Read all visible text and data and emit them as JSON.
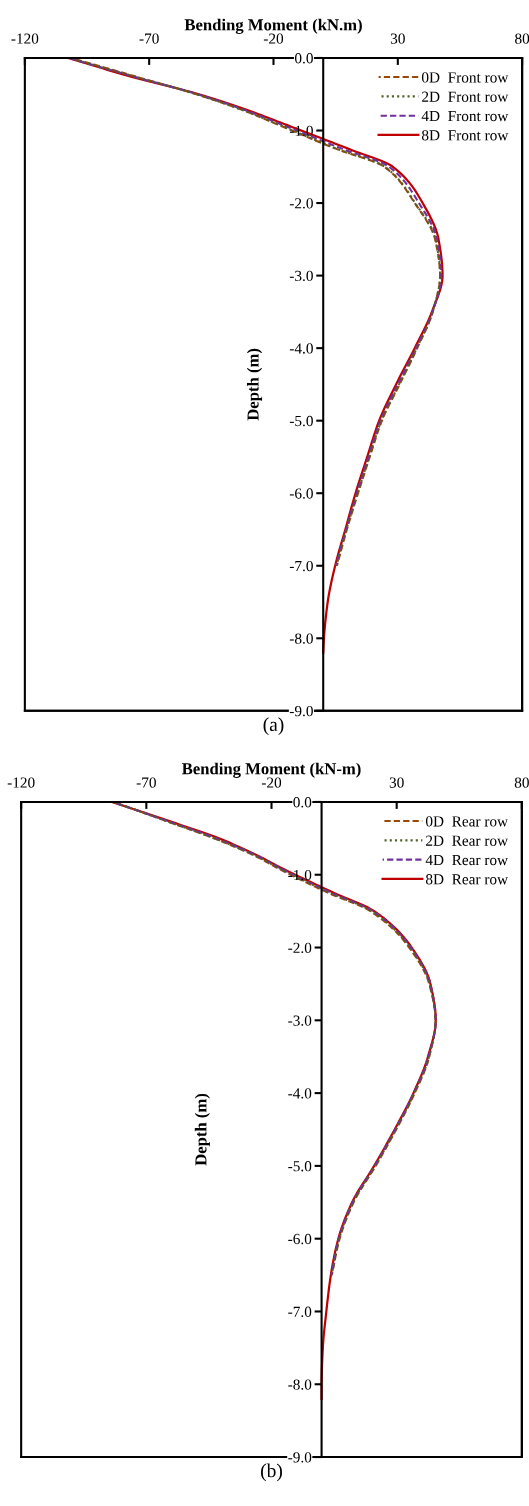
{
  "chart_data": [
    {
      "type": "line",
      "xlabel": "Bending Moment (kN.m)",
      "ylabel": "Depth (m)",
      "annotations": [
        "(a)"
      ],
      "xlim": [
        -120,
        80
      ],
      "xticks": [
        -120,
        -70,
        -20,
        30,
        80
      ],
      "ylim": [
        -9,
        0
      ],
      "yticks": [
        {
          "value": 0,
          "label": "0.0"
        },
        {
          "value": -1,
          "label": "-1.0"
        },
        {
          "value": -2,
          "label": "-2.0"
        },
        {
          "value": -3,
          "label": "-3.0"
        },
        {
          "value": -4,
          "label": "-4.0"
        },
        {
          "value": -5,
          "label": "-5.0"
        },
        {
          "value": -6,
          "label": "-6.0"
        },
        {
          "value": -7,
          "label": "-7.0"
        },
        {
          "value": -8,
          "label": "-8.0"
        },
        {
          "value": -9,
          "label": "-9.0"
        }
      ],
      "grid": false,
      "legend": "top right",
      "marker": "none",
      "series": [
        {
          "name": "0D  Front row",
          "color": "#984807",
          "line_style": "dashed",
          "x": [
            -101.5,
            -76,
            -51,
            -30,
            -19.5,
            5,
            24.6,
            36.8,
            45,
            47,
            44,
            37.8,
            30.7,
            23.6,
            18.7,
            14,
            9.5,
            5.5
          ],
          "values": [
            0,
            -0.25,
            -0.5,
            -0.75,
            -0.9,
            -1.25,
            -1.5,
            -2.0,
            -2.5,
            -3.0,
            -3.5,
            -4.0,
            -4.5,
            -5.0,
            -5.5,
            -6.0,
            -6.5,
            -7.0
          ]
        },
        {
          "name": "2D  Front row",
          "color": "#4f6228",
          "line_style": "dotted",
          "x": [
            -102,
            -76.5,
            -51,
            -30,
            -19.2,
            5.3,
            24.8,
            37,
            45.2,
            47,
            44,
            37.6,
            30.5,
            23.4,
            18.5,
            13.8,
            9.3,
            5.3
          ],
          "values": [
            0,
            -0.25,
            -0.5,
            -0.75,
            -0.9,
            -1.25,
            -1.5,
            -2.0,
            -2.5,
            -3.0,
            -3.5,
            -4.0,
            -4.5,
            -5.0,
            -5.5,
            -6.0,
            -6.5,
            -7.0
          ]
        },
        {
          "name": "4D  Front row",
          "color": "#7030a0",
          "line_style": "dashed",
          "x": [
            -102.5,
            -77,
            -50.5,
            -29,
            -18,
            7.5,
            26.5,
            38.5,
            45.8,
            47.5,
            44,
            37.3,
            30,
            23,
            18.2,
            13.5,
            9.2,
            5
          ],
          "values": [
            0,
            -0.25,
            -0.5,
            -0.75,
            -0.9,
            -1.25,
            -1.5,
            -2.0,
            -2.5,
            -3.0,
            -3.5,
            -4.0,
            -4.5,
            -5.0,
            -5.5,
            -6.0,
            -6.5,
            -7.0
          ]
        },
        {
          "name": "8D  Front row",
          "color": "#c00000",
          "line_style": "solid",
          "x": [
            -102.6,
            -78,
            -50,
            -28,
            -16.5,
            10,
            28,
            40,
            46.4,
            48,
            43.7,
            36.8,
            29.3,
            22.5,
            17.7,
            13,
            8.9,
            4.8,
            1.8,
            0.3,
            0
          ],
          "values": [
            0,
            -0.25,
            -0.5,
            -0.75,
            -0.9,
            -1.25,
            -1.5,
            -2.0,
            -2.5,
            -3.0,
            -3.5,
            -4.0,
            -4.5,
            -5.0,
            -5.5,
            -6.0,
            -6.5,
            -7.0,
            -7.5,
            -8.0,
            -8.2
          ]
        }
      ]
    },
    {
      "type": "line",
      "xlabel": "Bending Moment (kN-m)",
      "ylabel": "Depth (m)",
      "annotations": [
        "(b)"
      ],
      "xlim": [
        -120,
        80
      ],
      "xticks": [
        -120,
        -70,
        -20,
        30,
        80
      ],
      "ylim": [
        -9,
        0
      ],
      "yticks": [
        {
          "value": 0,
          "label": "0.0"
        },
        {
          "value": -1,
          "label": "-1.0"
        },
        {
          "value": -2,
          "label": "-2.0"
        },
        {
          "value": -3,
          "label": "-3.0"
        },
        {
          "value": -4,
          "label": "-4.0"
        },
        {
          "value": -5,
          "label": "-5.0"
        },
        {
          "value": -6,
          "label": "-6.0"
        },
        {
          "value": -7,
          "label": "-7.0"
        },
        {
          "value": -8,
          "label": "-8.0"
        },
        {
          "value": -9,
          "label": "-9.0"
        }
      ],
      "grid": false,
      "legend": "top right",
      "marker": "none",
      "series": [
        {
          "name": "0D  Rear row",
          "color": "#984807",
          "line_style": "dashed",
          "x": [
            -83,
            -63,
            -43,
            -26,
            -18,
            2.8,
            19.5,
            35,
            43,
            45.5,
            43,
            37.2,
            29.8,
            21.6,
            12.8,
            7.2,
            4.1
          ],
          "values": [
            0,
            -0.25,
            -0.5,
            -0.75,
            -0.9,
            -1.25,
            -1.5,
            -2.0,
            -2.5,
            -3.0,
            -3.5,
            -4.0,
            -4.5,
            -5.0,
            -5.5,
            -6.0,
            -6.5
          ]
        },
        {
          "name": "2D  Rear row",
          "color": "#4f6228",
          "line_style": "dotted",
          "x": [
            -83.2,
            -63,
            -42.8,
            -25.8,
            -17.5,
            3.3,
            20,
            35.3,
            43.2,
            45.5,
            42.9,
            37,
            29.6,
            21.4,
            12.6,
            7,
            4
          ],
          "values": [
            0,
            -0.25,
            -0.5,
            -0.75,
            -0.9,
            -1.25,
            -1.5,
            -2.0,
            -2.5,
            -3.0,
            -3.5,
            -4.0,
            -4.5,
            -5.0,
            -5.5,
            -6.0,
            -6.5
          ]
        },
        {
          "name": "4D  Rear row",
          "color": "#7030a0",
          "line_style": "dashed",
          "x": [
            -83.5,
            -62.5,
            -42,
            -25.2,
            -17,
            4,
            20.5,
            35.7,
            43.4,
            45.6,
            42.7,
            36.8,
            29.4,
            21.2,
            12.4,
            6.9,
            3.9
          ],
          "values": [
            0,
            -0.25,
            -0.5,
            -0.75,
            -0.9,
            -1.25,
            -1.5,
            -2.0,
            -2.5,
            -3.0,
            -3.5,
            -4.0,
            -4.5,
            -5.0,
            -5.5,
            -6.0,
            -6.5
          ]
        },
        {
          "name": "8D  Rear row",
          "color": "#c00000",
          "line_style": "solid",
          "x": [
            -83.7,
            -62,
            -41,
            -24.8,
            -16.5,
            5,
            21,
            36,
            43.5,
            45.6,
            42.5,
            36.7,
            29.2,
            21,
            12.2,
            6.7,
            3.7,
            1.9,
            0.5,
            0,
            0
          ],
          "values": [
            0,
            -0.25,
            -0.5,
            -0.75,
            -0.9,
            -1.25,
            -1.5,
            -2.0,
            -2.5,
            -3.0,
            -3.5,
            -4.0,
            -4.5,
            -5.0,
            -5.5,
            -6.0,
            -6.5,
            -7.0,
            -7.5,
            -8.0,
            -8.2
          ]
        }
      ]
    }
  ]
}
